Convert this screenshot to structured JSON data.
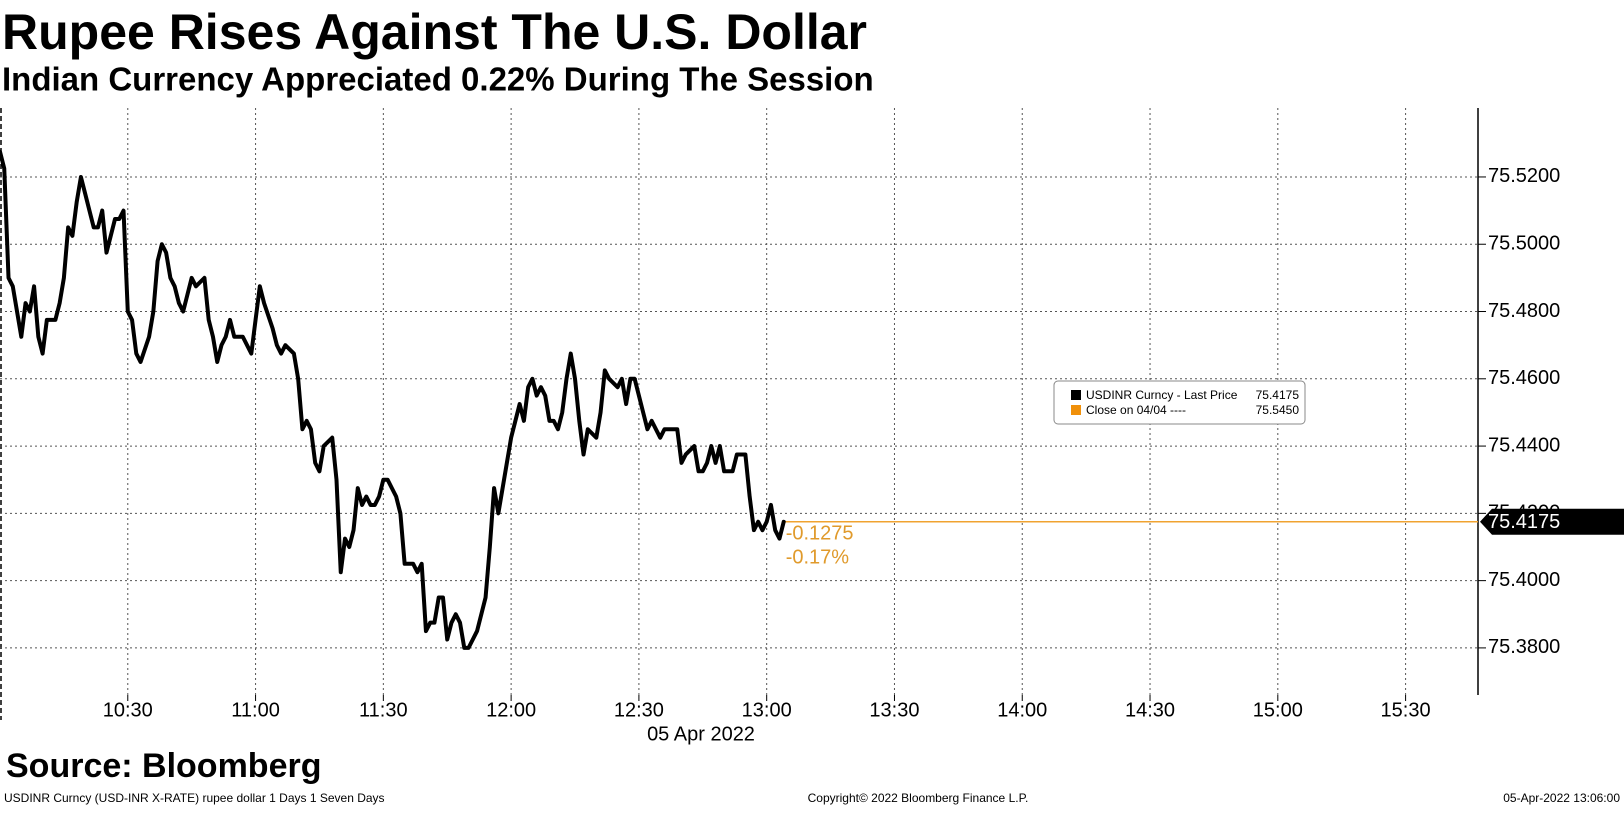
{
  "chart_data": {
    "type": "line",
    "title": "Rupee Rises Against The U.S. Dollar",
    "subtitle": "Indian Currency Appreciated 0.22% During The Session",
    "source": "Source: Bloomberg",
    "footer_left": "USDINR Curncy (USD-INR X-RATE) rupee dollar 1 Days 1 Seven Days",
    "footer_center": "Copyright© 2022 Bloomberg Finance L.P.",
    "footer_right": "05-Apr-2022 13:06:00",
    "x_axis_label": "05 Apr 2022",
    "x": [
      "10:00",
      "10:01",
      "10:02",
      "10:03",
      "10:05",
      "10:06",
      "10:07",
      "10:08",
      "10:09",
      "10:10",
      "10:11",
      "10:13",
      "10:14",
      "10:15",
      "10:16",
      "10:17",
      "10:18",
      "10:19",
      "10:20",
      "10:21",
      "10:22",
      "10:23",
      "10:24",
      "10:25",
      "10:26",
      "10:27",
      "10:28",
      "10:29",
      "10:30",
      "10:31",
      "10:32",
      "10:33",
      "10:35",
      "10:36",
      "10:37",
      "10:38",
      "10:39",
      "10:40",
      "10:41",
      "10:42",
      "10:43",
      "10:44",
      "10:45",
      "10:46",
      "10:48",
      "10:49",
      "10:50",
      "10:51",
      "10:52",
      "10:53",
      "10:54",
      "10:55",
      "10:57",
      "10:59",
      "11:00",
      "11:01",
      "11:02",
      "11:04",
      "11:05",
      "11:06",
      "11:07",
      "11:09",
      "11:10",
      "11:11",
      "11:12",
      "11:13",
      "11:14",
      "11:15",
      "11:16",
      "11:18",
      "11:19",
      "11:20",
      "11:21",
      "11:22",
      "11:23",
      "11:24",
      "11:25",
      "11:26",
      "11:27",
      "11:28",
      "11:29",
      "11:30",
      "11:31",
      "11:32",
      "11:33",
      "11:34",
      "11:35",
      "11:37",
      "11:38",
      "11:39",
      "11:40",
      "11:41",
      "11:42",
      "11:43",
      "11:44",
      "11:45",
      "11:46",
      "11:47",
      "11:48",
      "11:49",
      "11:50",
      "11:51",
      "11:52",
      "11:54",
      "11:55",
      "11:56",
      "11:57",
      "11:58",
      "11:59",
      "12:00",
      "12:01",
      "12:02",
      "12:03",
      "12:04",
      "12:05",
      "12:06",
      "12:07",
      "12:08",
      "12:09",
      "12:10",
      "12:11",
      "12:12",
      "12:13",
      "12:14",
      "12:15",
      "12:16",
      "12:17",
      "12:18",
      "12:20",
      "12:21",
      "12:22",
      "12:23",
      "12:25",
      "12:26",
      "12:27",
      "12:28",
      "12:29",
      "12:30",
      "12:31",
      "12:32",
      "12:33",
      "12:35",
      "12:36",
      "12:39",
      "12:40",
      "12:41",
      "12:43",
      "12:44",
      "12:45",
      "12:46",
      "12:47",
      "12:48",
      "12:49",
      "12:50",
      "12:52",
      "12:53",
      "12:55",
      "12:56",
      "12:57",
      "12:58",
      "12:59",
      "13:00",
      "13:01",
      "13:02",
      "13:03",
      "13:04"
    ],
    "series": [
      {
        "name": "USDINR Curncy - Last Price",
        "color": "#000000",
        "values": [
          75.5275,
          75.5225,
          75.49,
          75.4875,
          75.4725,
          75.4825,
          75.48,
          75.4875,
          75.4725,
          75.4675,
          75.4775,
          75.4775,
          75.4825,
          75.49,
          75.505,
          75.5025,
          75.5125,
          75.52,
          75.515,
          75.51,
          75.505,
          75.505,
          75.51,
          75.4975,
          75.5025,
          75.5075,
          75.5075,
          75.51,
          75.48,
          75.4775,
          75.4675,
          75.465,
          75.4725,
          75.48,
          75.495,
          75.5,
          75.4975,
          75.49,
          75.4875,
          75.4825,
          75.48,
          75.485,
          75.49,
          75.4875,
          75.49,
          75.4775,
          75.4725,
          75.465,
          75.47,
          75.4725,
          75.4775,
          75.4725,
          75.4725,
          75.4675,
          75.4775,
          75.4875,
          75.4825,
          75.475,
          75.47,
          75.4675,
          75.47,
          75.4675,
          75.46,
          75.445,
          75.4475,
          75.445,
          75.435,
          75.4325,
          75.44,
          75.4425,
          75.43,
          75.4025,
          75.4125,
          75.41,
          75.415,
          75.4275,
          75.4225,
          75.425,
          75.4225,
          75.4225,
          75.425,
          75.43,
          75.43,
          75.4275,
          75.425,
          75.42,
          75.405,
          75.405,
          75.4025,
          75.405,
          75.385,
          75.3875,
          75.3875,
          75.395,
          75.395,
          75.3825,
          75.3875,
          75.39,
          75.3875,
          75.38,
          75.38,
          75.3825,
          75.385,
          75.395,
          75.41,
          75.4275,
          75.42,
          75.4275,
          75.435,
          75.4425,
          75.4475,
          75.4525,
          75.4475,
          75.4575,
          75.46,
          75.455,
          75.4575,
          75.455,
          75.4475,
          75.4475,
          75.445,
          75.45,
          75.46,
          75.4675,
          75.46,
          75.4475,
          75.4375,
          75.445,
          75.4425,
          75.45,
          75.4625,
          75.46,
          75.4575,
          75.46,
          75.4525,
          75.46,
          75.46,
          75.455,
          75.45,
          75.445,
          75.4475,
          75.4425,
          75.445,
          75.445,
          75.435,
          75.4375,
          75.44,
          75.4325,
          75.4325,
          75.435,
          75.44,
          75.435,
          75.44,
          75.4325,
          75.4325,
          75.4375,
          75.4375,
          75.425,
          75.415,
          75.4175,
          75.415,
          75.4175,
          75.4225,
          75.415,
          75.4125,
          75.4175
        ]
      }
    ],
    "last_price": {
      "value": 75.4175,
      "color": "#f0a330"
    },
    "close": {
      "name": "Close on 04/04 ----",
      "value": 75.545,
      "label": "75.5450",
      "color": "#f0900a"
    },
    "annotations": [
      {
        "value": -0.1275
      },
      {
        "value": -0.17,
        "label": "-0.17%"
      }
    ],
    "xlim": [
      "10:00",
      "15:47"
    ],
    "xticks": [
      "10:30",
      "11:00",
      "11:30",
      "12:00",
      "12:30",
      "13:00",
      "13:30",
      "14:00",
      "14:30",
      "15:00",
      "15:30"
    ],
    "ylim": [
      75.366,
      75.5405
    ],
    "yticks": [
      {
        "value": 75.38,
        "label": "75.3800"
      },
      {
        "value": 75.4,
        "label": "75.4000"
      },
      {
        "value": 75.42,
        "label": "75.4200"
      },
      {
        "value": 75.44,
        "label": "75.4400"
      },
      {
        "value": 75.46,
        "label": "75.4600"
      },
      {
        "value": 75.48,
        "label": "75.4800"
      },
      {
        "value": 75.5,
        "label": "75.5000"
      },
      {
        "value": 75.52,
        "label": "75.5200"
      }
    ],
    "grid": true
  }
}
